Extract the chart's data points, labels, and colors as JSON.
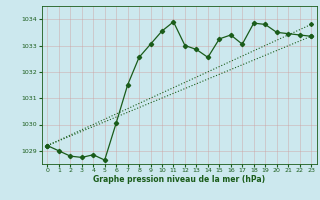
{
  "title": "Graphe pression niveau de la mer (hPa)",
  "bg_color": "#cce8ee",
  "grid_color": "#cc9999",
  "line_color": "#1a5c1a",
  "xlim": [
    -0.5,
    23.5
  ],
  "ylim": [
    1028.5,
    1034.5
  ],
  "yticks": [
    1029,
    1030,
    1031,
    1032,
    1033,
    1034
  ],
  "xticks": [
    0,
    1,
    2,
    3,
    4,
    5,
    6,
    7,
    8,
    9,
    10,
    11,
    12,
    13,
    14,
    15,
    16,
    17,
    18,
    19,
    20,
    21,
    22,
    23
  ],
  "series1_x": [
    0,
    1,
    2,
    3,
    4,
    5,
    6,
    7,
    8,
    9,
    10,
    11,
    12,
    13,
    14,
    15,
    16,
    17,
    18,
    19,
    20,
    21,
    22,
    23
  ],
  "series1_y": [
    1029.2,
    1029.0,
    1028.8,
    1028.75,
    1028.85,
    1028.65,
    1030.05,
    1031.5,
    1032.55,
    1033.05,
    1033.55,
    1033.9,
    1033.0,
    1032.85,
    1032.55,
    1033.25,
    1033.4,
    1033.05,
    1033.85,
    1033.8,
    1033.5,
    1033.45,
    1033.4,
    1033.35
  ],
  "series2_x": [
    0,
    23
  ],
  "series2_y": [
    1029.2,
    1033.35
  ],
  "series3_x": [
    0,
    23
  ],
  "series3_y": [
    1029.2,
    1033.8
  ]
}
